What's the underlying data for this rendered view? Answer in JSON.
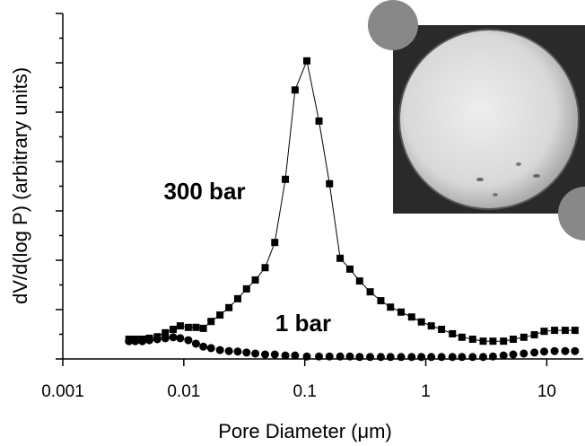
{
  "chart_data": {
    "type": "scatter-line",
    "xlabel": "Pore Diameter (μm)",
    "ylabel": "dV/d(log P) (arbitrary units)",
    "annotations": [
      "300 bar",
      "1 bar"
    ],
    "xscale": "log",
    "xlim": [
      0.001,
      20
    ],
    "xticks": [
      {
        "value": 0.001,
        "label": "0.001"
      },
      {
        "value": 0.01,
        "label": "0.01"
      },
      {
        "value": 0.1,
        "label": "0.1"
      },
      1,
      10
    ],
    "ylim": [
      0,
      7
    ],
    "yticks": [
      0,
      0.5,
      1,
      1.5,
      2,
      2.5,
      3,
      3.5,
      4,
      4.5,
      5,
      5.5,
      6,
      6.5,
      7
    ],
    "x": [
      0.00352,
      0.00397,
      0.00454,
      0.00519,
      0.00604,
      0.00703,
      0.00817,
      0.00935,
      0.0109,
      0.0126,
      0.0145,
      0.0168,
      0.0199,
      0.0236,
      0.0279,
      0.033,
      0.039,
      0.047,
      0.0565,
      0.0691,
      0.0831,
      0.104,
      0.131,
      0.16,
      0.196,
      0.236,
      0.284,
      0.347,
      0.425,
      0.511,
      0.625,
      0.764,
      0.92,
      1.11,
      1.35,
      1.66,
      1.99,
      2.44,
      2.98,
      3.59,
      4.39,
      5.28,
      6.46,
      7.9,
      9.51,
      11.6,
      14.2,
      17.1
    ],
    "series": [
      {
        "name": "300 bar",
        "marker": "square",
        "line": true,
        "color": "#000000",
        "values": [
          0.4,
          0.4,
          0.4,
          0.42,
          0.45,
          0.53,
          0.6,
          0.67,
          0.64,
          0.64,
          0.62,
          0.76,
          0.89,
          1.04,
          1.22,
          1.42,
          1.6,
          1.85,
          2.36,
          3.64,
          5.45,
          6.04,
          4.82,
          3.55,
          2.04,
          1.82,
          1.58,
          1.36,
          1.18,
          1.05,
          0.95,
          0.85,
          0.75,
          0.67,
          0.6,
          0.51,
          0.44,
          0.4,
          0.36,
          0.36,
          0.36,
          0.4,
          0.44,
          0.49,
          0.56,
          0.58,
          0.58,
          0.58
        ]
      },
      {
        "name": "1 bar",
        "marker": "circle",
        "line": false,
        "color": "#000000",
        "values": [
          0.36,
          0.36,
          0.36,
          0.38,
          0.4,
          0.42,
          0.44,
          0.42,
          0.38,
          0.31,
          0.25,
          0.22,
          0.18,
          0.16,
          0.15,
          0.13,
          0.11,
          0.09,
          0.09,
          0.07,
          0.07,
          0.05,
          0.05,
          0.05,
          0.05,
          0.05,
          0.04,
          0.04,
          0.04,
          0.04,
          0.04,
          0.04,
          0.04,
          0.04,
          0.04,
          0.04,
          0.04,
          0.04,
          0.04,
          0.05,
          0.07,
          0.09,
          0.11,
          0.13,
          0.15,
          0.16,
          0.16,
          0.16
        ]
      }
    ]
  }
}
